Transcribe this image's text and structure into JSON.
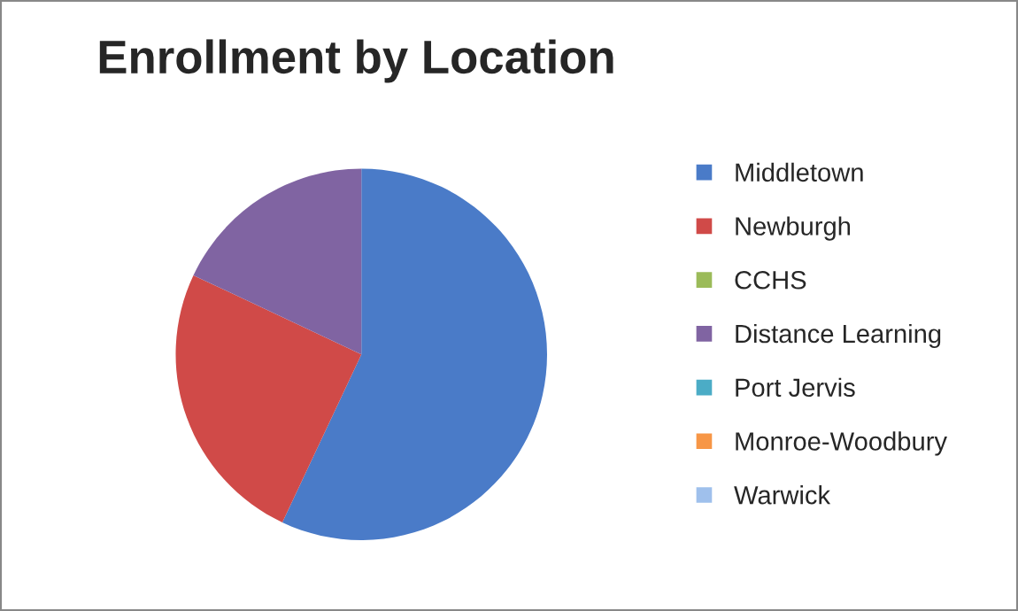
{
  "chart_data": {
    "type": "pie",
    "title": "Enrollment by Location",
    "categories": [
      "Middletown",
      "Newburgh",
      "CCHS",
      "Distance Learning",
      "Port Jervis",
      "Monroe-Woodbury",
      "Warwick"
    ],
    "values": [
      57,
      25,
      0,
      18,
      0,
      0,
      0
    ],
    "colors": [
      "#4a7bc8",
      "#d04a48",
      "#9bbb59",
      "#8064a2",
      "#4bacc6",
      "#f79646",
      "#9fc0ec"
    ],
    "legend": "right"
  }
}
